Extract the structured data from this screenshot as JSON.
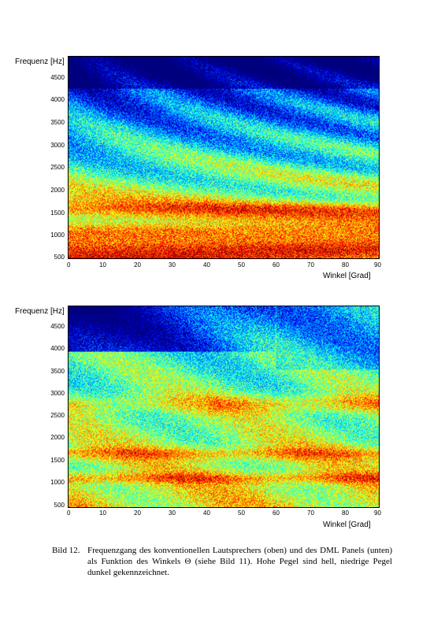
{
  "figures": [
    {
      "ylabel": "Frequenz [Hz]",
      "xlabel": "Winkel [Grad]",
      "yticks": [
        "4500",
        "4000",
        "3500",
        "3000",
        "2500",
        "2000",
        "1500",
        "1000",
        "500"
      ],
      "xticks": [
        "0",
        "10",
        "20",
        "30",
        "40",
        "50",
        "60",
        "70",
        "80",
        "90"
      ]
    },
    {
      "ylabel": "Frequenz [Hz]",
      "xlabel": "Winkel [Grad]",
      "yticks": [
        "4500",
        "4000",
        "3500",
        "3000",
        "2500",
        "2000",
        "1500",
        "1000",
        "500"
      ],
      "xticks": [
        "0",
        "10",
        "20",
        "30",
        "40",
        "50",
        "60",
        "70",
        "80",
        "90"
      ]
    }
  ],
  "chart_data": [
    {
      "type": "heatmap",
      "xlabel": "Winkel [Grad]",
      "ylabel": "Frequenz [Hz]",
      "xlim": [
        0,
        90
      ],
      "ylim": [
        450,
        4900
      ],
      "colormap": "jet"
    },
    {
      "type": "heatmap",
      "xlabel": "Winkel [Grad]",
      "ylabel": "Frequenz [Hz]",
      "xlim": [
        0,
        90
      ],
      "ylim": [
        450,
        4900
      ],
      "colormap": "jet"
    }
  ],
  "caption": {
    "number": "Bild 12.",
    "text": "Frequenzgang des konventionellen Lautsprechers (oben) und des DML Panels (unten) als Funktion des Winkels Θ (siehe Bild 11). Hohe Pegel sind hell, niedrige Pegel dunkel gekennzeichnet."
  }
}
